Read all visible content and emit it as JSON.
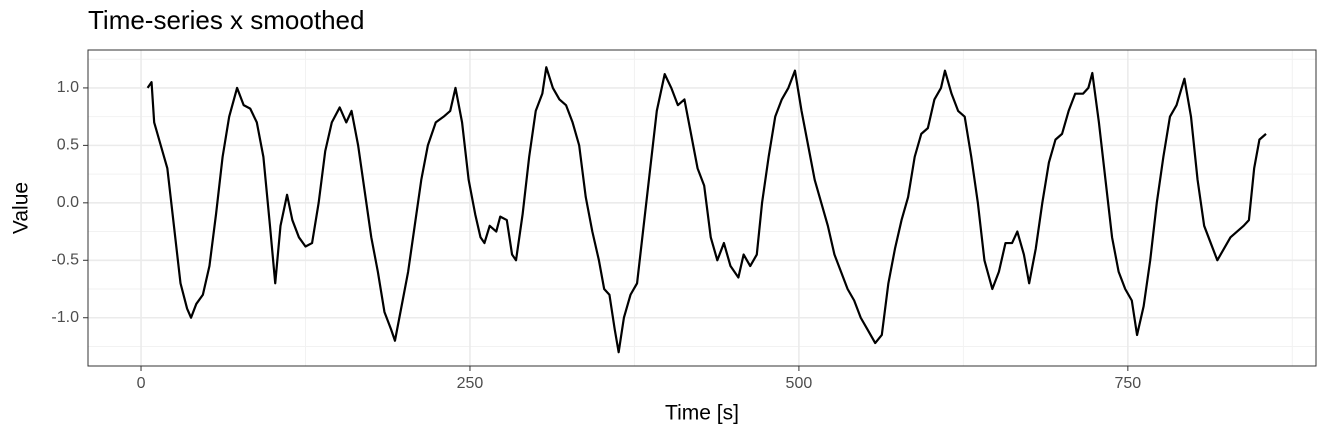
{
  "chart_data": {
    "type": "line",
    "title": "Time-series x smoothed",
    "x_label": "Time [s]",
    "y_label": "Value",
    "color": "#000000",
    "grid": true,
    "xlim": [
      -40.3,
      893
    ],
    "ylim": [
      -1.42,
      1.33
    ],
    "xticks": [
      0,
      250,
      500,
      750
    ],
    "yticks": [
      {
        "value": -1,
        "label": "-1.0"
      },
      -0.5,
      {
        "value": 0,
        "label": "0.0"
      },
      0.5,
      {
        "value": 1,
        "label": "1.0"
      }
    ],
    "x": [
      5,
      8,
      10,
      15,
      20,
      25,
      30,
      35,
      38,
      42,
      47,
      52,
      57,
      62,
      67,
      73,
      78,
      83,
      88,
      93,
      98,
      102,
      106,
      111,
      115,
      120,
      125,
      130,
      135,
      140,
      145,
      151,
      156,
      160,
      165,
      170,
      175,
      180,
      185,
      190,
      193,
      198,
      203,
      208,
      213,
      218,
      224,
      230,
      235,
      239,
      244,
      249,
      254,
      258,
      261,
      265,
      270,
      273,
      278,
      282,
      285,
      290,
      295,
      300,
      305,
      308,
      313,
      318,
      323,
      328,
      333,
      338,
      343,
      348,
      352,
      356,
      360,
      363,
      367,
      372,
      377,
      382,
      387,
      392,
      398,
      403,
      408,
      413,
      418,
      423,
      428,
      433,
      438,
      443,
      448,
      454,
      458,
      463,
      468,
      472,
      477,
      482,
      487,
      492,
      497,
      502,
      507,
      512,
      517,
      522,
      527,
      532,
      537,
      542,
      547,
      552,
      558,
      563,
      568,
      573,
      578,
      583,
      588,
      593,
      598,
      603,
      608,
      611,
      616,
      621,
      626,
      631,
      636,
      641,
      647,
      652,
      657,
      662,
      666,
      671,
      675,
      680,
      685,
      690,
      695,
      700,
      705,
      710,
      716,
      720,
      723,
      728,
      733,
      738,
      743,
      748,
      753,
      757,
      762,
      767,
      772,
      777,
      782,
      787,
      793,
      798,
      803,
      808,
      813,
      818,
      823,
      828,
      833,
      838,
      842,
      846,
      850,
      855
    ],
    "values": [
      1.0,
      1.05,
      0.7,
      0.5,
      0.3,
      -0.2,
      -0.7,
      -0.92,
      -1.0,
      -0.88,
      -0.8,
      -0.55,
      -0.1,
      0.4,
      0.75,
      1.0,
      0.85,
      0.82,
      0.7,
      0.4,
      -0.2,
      -0.7,
      -0.2,
      0.07,
      -0.15,
      -0.3,
      -0.38,
      -0.35,
      0.0,
      0.45,
      0.7,
      0.83,
      0.7,
      0.8,
      0.5,
      0.1,
      -0.3,
      -0.6,
      -0.95,
      -1.1,
      -1.2,
      -0.9,
      -0.6,
      -0.2,
      0.2,
      0.5,
      0.7,
      0.75,
      0.8,
      1.0,
      0.7,
      0.2,
      -0.1,
      -0.3,
      -0.35,
      -0.2,
      -0.25,
      -0.12,
      -0.15,
      -0.45,
      -0.5,
      -0.1,
      0.4,
      0.8,
      0.95,
      1.18,
      1.0,
      0.9,
      0.85,
      0.7,
      0.5,
      0.05,
      -0.25,
      -0.5,
      -0.75,
      -0.8,
      -1.1,
      -1.3,
      -1.0,
      -0.8,
      -0.7,
      -0.2,
      0.3,
      0.8,
      1.12,
      1.0,
      0.85,
      0.9,
      0.6,
      0.3,
      0.15,
      -0.3,
      -0.5,
      -0.35,
      -0.55,
      -0.65,
      -0.45,
      -0.55,
      -0.45,
      0.0,
      0.4,
      0.75,
      0.9,
      1.0,
      1.15,
      0.8,
      0.5,
      0.2,
      0.0,
      -0.2,
      -0.45,
      -0.6,
      -0.75,
      -0.85,
      -1.0,
      -1.1,
      -1.22,
      -1.15,
      -0.7,
      -0.4,
      -0.15,
      0.05,
      0.4,
      0.6,
      0.65,
      0.9,
      1.0,
      1.15,
      0.95,
      0.8,
      0.75,
      0.4,
      0.0,
      -0.5,
      -0.75,
      -0.6,
      -0.35,
      -0.35,
      -0.25,
      -0.45,
      -0.7,
      -0.4,
      0.0,
      0.35,
      0.55,
      0.6,
      0.8,
      0.95,
      0.95,
      1.0,
      1.13,
      0.7,
      0.2,
      -0.3,
      -0.6,
      -0.75,
      -0.85,
      -1.15,
      -0.9,
      -0.5,
      0.0,
      0.4,
      0.75,
      0.85,
      1.08,
      0.75,
      0.2,
      -0.2,
      -0.35,
      -0.5,
      -0.4,
      -0.3,
      -0.25,
      -0.2,
      -0.15,
      0.3,
      0.55,
      0.6
    ]
  }
}
